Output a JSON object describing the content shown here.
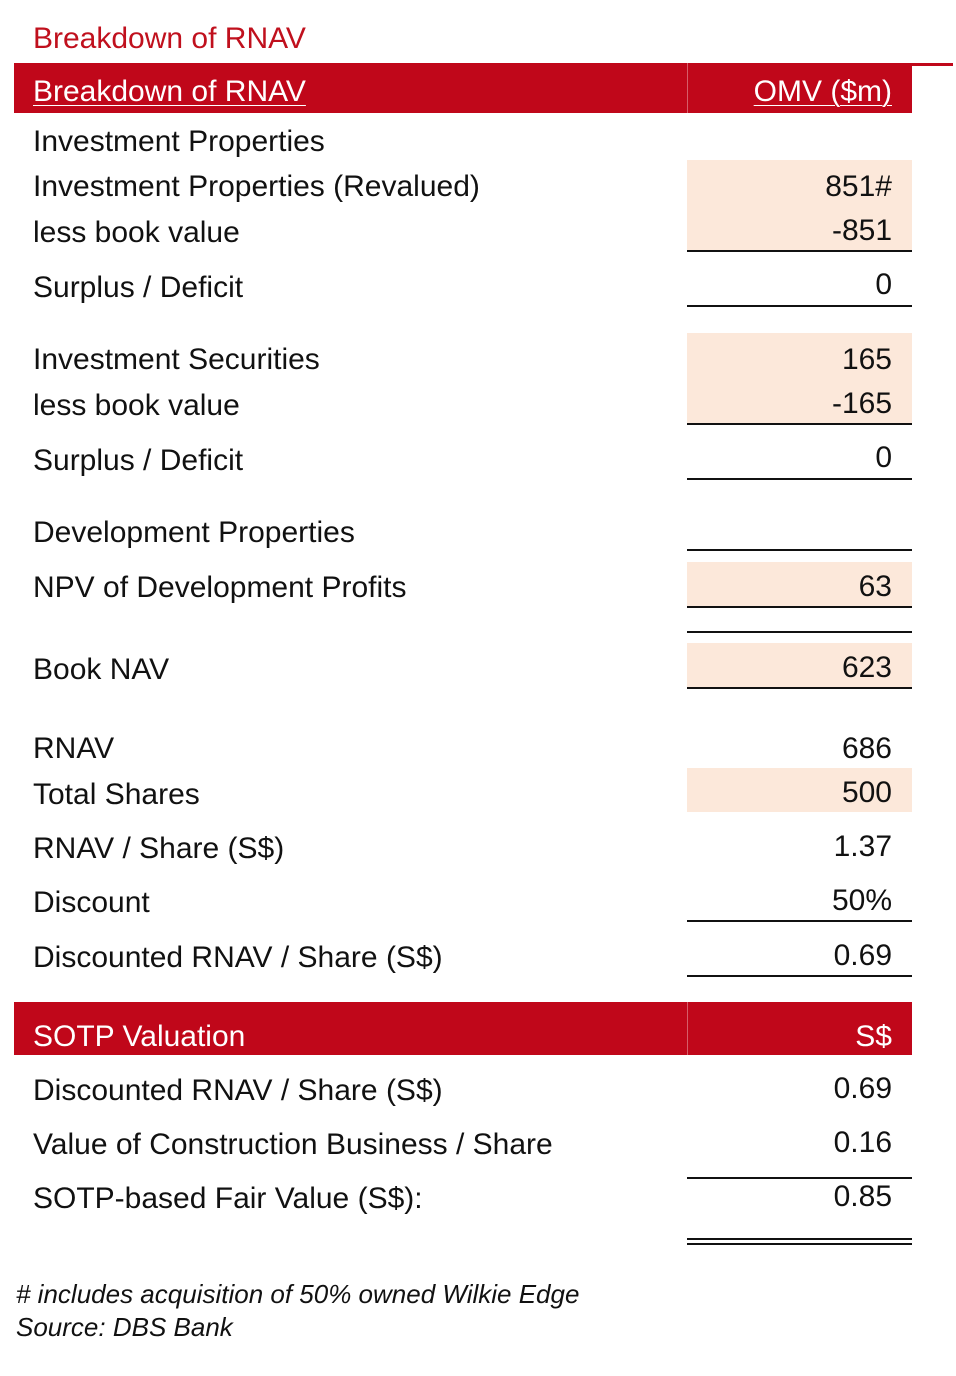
{
  "title": "Breakdown of RNAV",
  "header": {
    "label": "Breakdown of RNAV",
    "value_header": "OMV ($m)"
  },
  "rows": {
    "inv_prop_heading": "Investment Properties",
    "inv_prop_reval": {
      "label": "Investment Properties (Revalued)",
      "value": "851#"
    },
    "inv_prop_less": {
      "label": "less book value",
      "value": "-851"
    },
    "inv_prop_surplus": {
      "label": "Surplus / Deficit",
      "value": "0"
    },
    "inv_sec": {
      "label": "Investment Securities",
      "value": "165"
    },
    "inv_sec_less": {
      "label": "less book value",
      "value": "-165"
    },
    "inv_sec_surplus": {
      "label": "Surplus / Deficit",
      "value": "0"
    },
    "dev_prop_heading": "Development Properties",
    "npv_dev": {
      "label": "NPV of Development Profits",
      "value": "63"
    },
    "book_nav": {
      "label": "Book NAV",
      "value": "623"
    },
    "rnav": {
      "label": "RNAV",
      "value": "686"
    },
    "total_shares": {
      "label": "Total Shares",
      "value": "500"
    },
    "rnav_share": {
      "label": "RNAV / Share (S$)",
      "value": "1.37"
    },
    "discount": {
      "label": "Discount",
      "value": "50%"
    },
    "disc_rnav_share": {
      "label": "Discounted RNAV / Share (S$)",
      "value": "0.69"
    }
  },
  "sotp": {
    "header_label": "SOTP Valuation",
    "header_value": "S$",
    "rows": [
      {
        "label": "Discounted RNAV / Share (S$)",
        "value": "0.69"
      },
      {
        "label": "Value of Construction Business / Share",
        "value": "0.16"
      },
      {
        "label": "SOTP-based Fair Value (S$):",
        "value": "0.85"
      }
    ]
  },
  "footnotes": {
    "note": "# includes acquisition of 50% owned Wilkie Edge",
    "source": "Source: DBS Bank"
  },
  "colors": {
    "accent_red": "#c0071a",
    "title_red": "#c0101d",
    "input_shade": "#fce8da"
  }
}
